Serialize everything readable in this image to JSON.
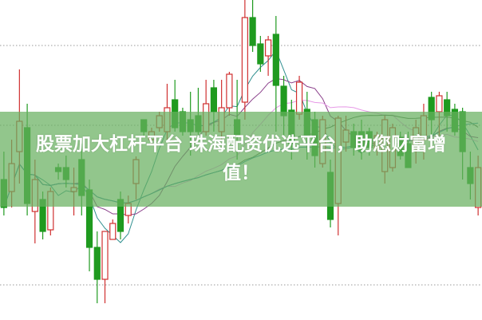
{
  "banner": {
    "line1": "股票加大杠杆平台 珠海配资优选平台，助您财富增",
    "line2": "值！",
    "color": "#68b060"
  },
  "chart_data": {
    "type": "candlestick",
    "title": "",
    "xlabel": "",
    "ylabel": "",
    "ylim": [
      0,
      401
    ],
    "grid": true,
    "grid_style": "dotted",
    "grid_levels": [
      44,
      244,
      344
    ],
    "up_color": "#d03030",
    "down_color": "#1f9a1f",
    "ma_colors": [
      "#2f8f8f",
      "#8a3f8a",
      "#e79ae7",
      "#4b6b4b",
      "#2a8aa0"
    ],
    "open": [
      176,
      161,
      211,
      241,
      136,
      151,
      113,
      191,
      191,
      161,
      201,
      163,
      91,
      51,
      101,
      151,
      131,
      171,
      251,
      226,
      241,
      236,
      276,
      261,
      251,
      256,
      236,
      291,
      236,
      266,
      251,
      273,
      379,
      346,
      331,
      358,
      293,
      263,
      258,
      264,
      251,
      196,
      185,
      146,
      223,
      236,
      236,
      236,
      216,
      186,
      191,
      229,
      221,
      216,
      226,
      279,
      261,
      276,
      264,
      261,
      191,
      141
    ],
    "high": [
      211,
      226,
      314,
      271,
      201,
      161,
      166,
      196,
      206,
      191,
      221,
      176,
      111,
      111,
      126,
      161,
      156,
      205,
      251,
      241,
      261,
      296,
      301,
      266,
      286,
      291,
      301,
      301,
      301,
      311,
      301,
      401,
      401,
      356,
      356,
      381,
      306,
      276,
      306,
      286,
      261,
      256,
      201,
      256,
      256,
      246,
      251,
      241,
      236,
      256,
      246,
      236,
      236,
      251,
      271,
      286,
      286,
      286,
      271,
      266,
      211,
      206
    ],
    "low": [
      131,
      141,
      171,
      131,
      96,
      101,
      106,
      176,
      166,
      131,
      131,
      61,
      21,
      21,
      101,
      101,
      121,
      151,
      231,
      221,
      236,
      226,
      236,
      231,
      206,
      226,
      231,
      236,
      226,
      256,
      201,
      251,
      336,
      311,
      306,
      236,
      231,
      201,
      251,
      201,
      191,
      191,
      116,
      106,
      211,
      206,
      201,
      206,
      206,
      171,
      186,
      201,
      191,
      196,
      201,
      231,
      231,
      236,
      231,
      176,
      151,
      131
    ],
    "close": [
      141,
      196,
      249,
      146,
      176,
      111,
      161,
      186,
      176,
      166,
      156,
      91,
      51,
      111,
      121,
      111,
      146,
      201,
      236,
      236,
      256,
      266,
      241,
      236,
      236,
      236,
      271,
      261,
      266,
      308,
      231,
      379,
      344,
      321,
      351,
      294,
      256,
      221,
      298,
      231,
      206,
      251,
      126,
      253,
      238,
      216,
      211,
      216,
      231,
      251,
      241,
      206,
      191,
      241,
      256,
      251,
      281,
      256,
      236,
      211,
      171,
      191
    ]
  }
}
